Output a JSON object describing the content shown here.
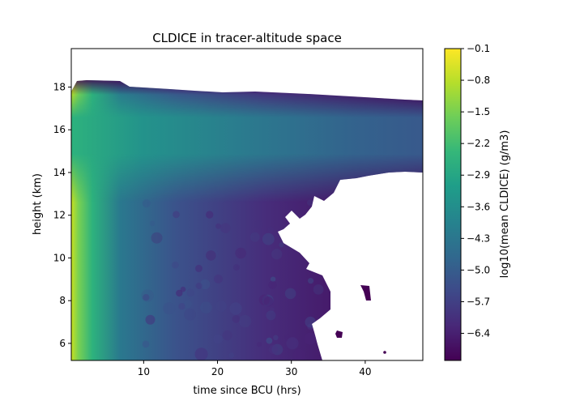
{
  "chart_data": {
    "type": "heatmap",
    "title": "CLDICE in tracer-altitude space",
    "xlabel": "time since BCU (hrs)",
    "ylabel": "height (km)",
    "xlim": [
      0.2,
      47.8
    ],
    "ylim": [
      5.2,
      19.8
    ],
    "x_ticks": [
      10,
      20,
      30,
      40
    ],
    "y_ticks": [
      6,
      8,
      10,
      12,
      14,
      16,
      18
    ],
    "colorbar": {
      "label": "log10(mean CLDICE) (g/m3)",
      "range": [
        -7.0,
        -0.1
      ],
      "ticks": [
        -0.1,
        -0.8,
        -1.5,
        -2.2,
        -2.9,
        -3.6,
        -4.3,
        -5.0,
        -5.7,
        -6.4
      ],
      "colormap": "viridis"
    },
    "field_description": [
      {
        "x": 1,
        "profile_km": [
          6,
          8,
          10,
          12,
          14,
          16,
          18
        ],
        "values": [
          -1.6,
          -1.2,
          -1.0,
          -1.5,
          -2.2,
          -2.5,
          -3.5
        ]
      },
      {
        "x": 10,
        "profile_km": [
          6,
          8,
          10,
          12,
          14,
          16,
          18
        ],
        "values": [
          -5.2,
          -4.7,
          -4.0,
          -3.7,
          -3.0,
          -3.0,
          -6.2
        ]
      },
      {
        "x": 20,
        "profile_km": [
          6,
          8,
          10,
          12,
          14,
          16,
          18
        ],
        "values": [
          -5.9,
          -5.7,
          -5.5,
          -5.2,
          -3.6,
          -3.4,
          -6.5
        ]
      },
      {
        "x": 30,
        "profile_km": [
          6,
          8,
          10,
          12,
          14,
          16,
          18
        ],
        "values": [
          -6.5,
          -6.3,
          -6.2,
          -6.0,
          -4.3,
          -3.8,
          null
        ]
      },
      {
        "x": 45,
        "profile_km": [
          6,
          8,
          10,
          12,
          14,
          16,
          17
        ],
        "values": [
          null,
          null,
          null,
          null,
          -5.6,
          -4.3,
          -6.4
        ]
      }
    ]
  }
}
